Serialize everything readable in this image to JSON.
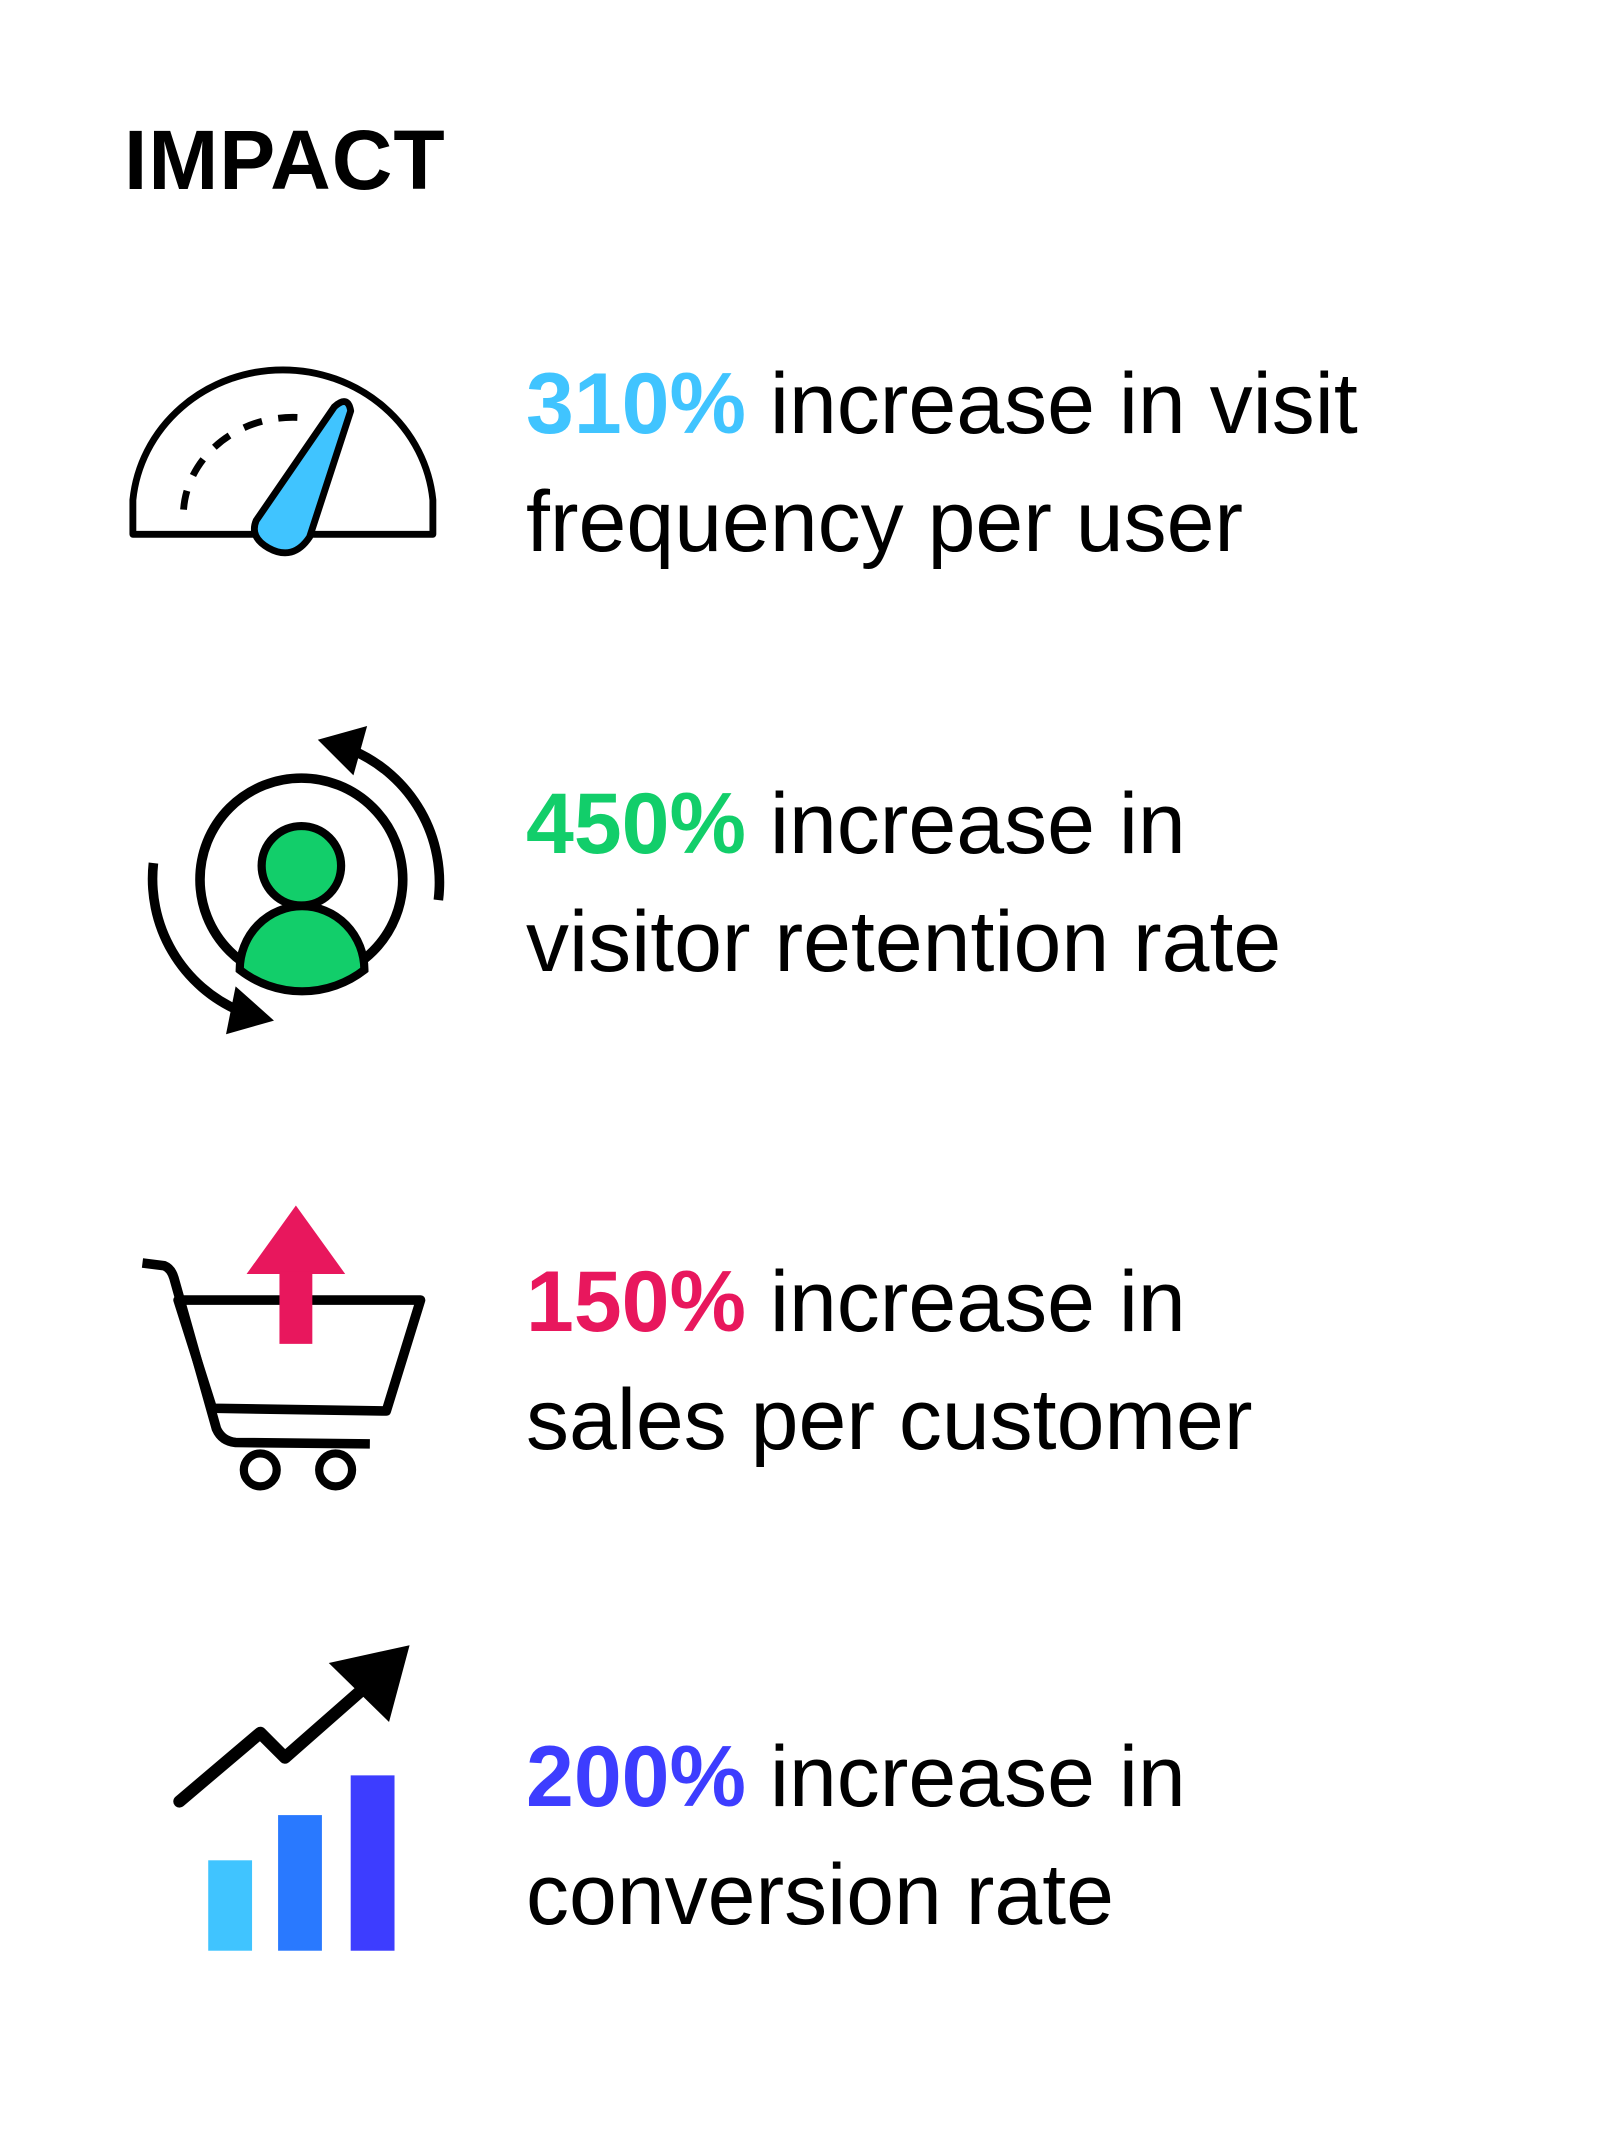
{
  "title": "IMPACT",
  "stats": [
    {
      "value": "310%",
      "line1": " increase in visit",
      "line2": "frequency per user",
      "color": "#40C4FF",
      "icon": "speedometer-icon"
    },
    {
      "value": "450%",
      "line1": " increase in",
      "line2": "visitor retention rate",
      "color": "#12CE6A",
      "icon": "user-retention-icon"
    },
    {
      "value": "150%",
      "line1": " increase in",
      "line2": "sales per customer",
      "color": "#E8175D",
      "icon": "shopping-cart-up-icon"
    },
    {
      "value": "200%",
      "line1": " increase in",
      "line2": "conversion rate",
      "color": "#3D3DFF",
      "icon": "growth-chart-icon"
    }
  ]
}
